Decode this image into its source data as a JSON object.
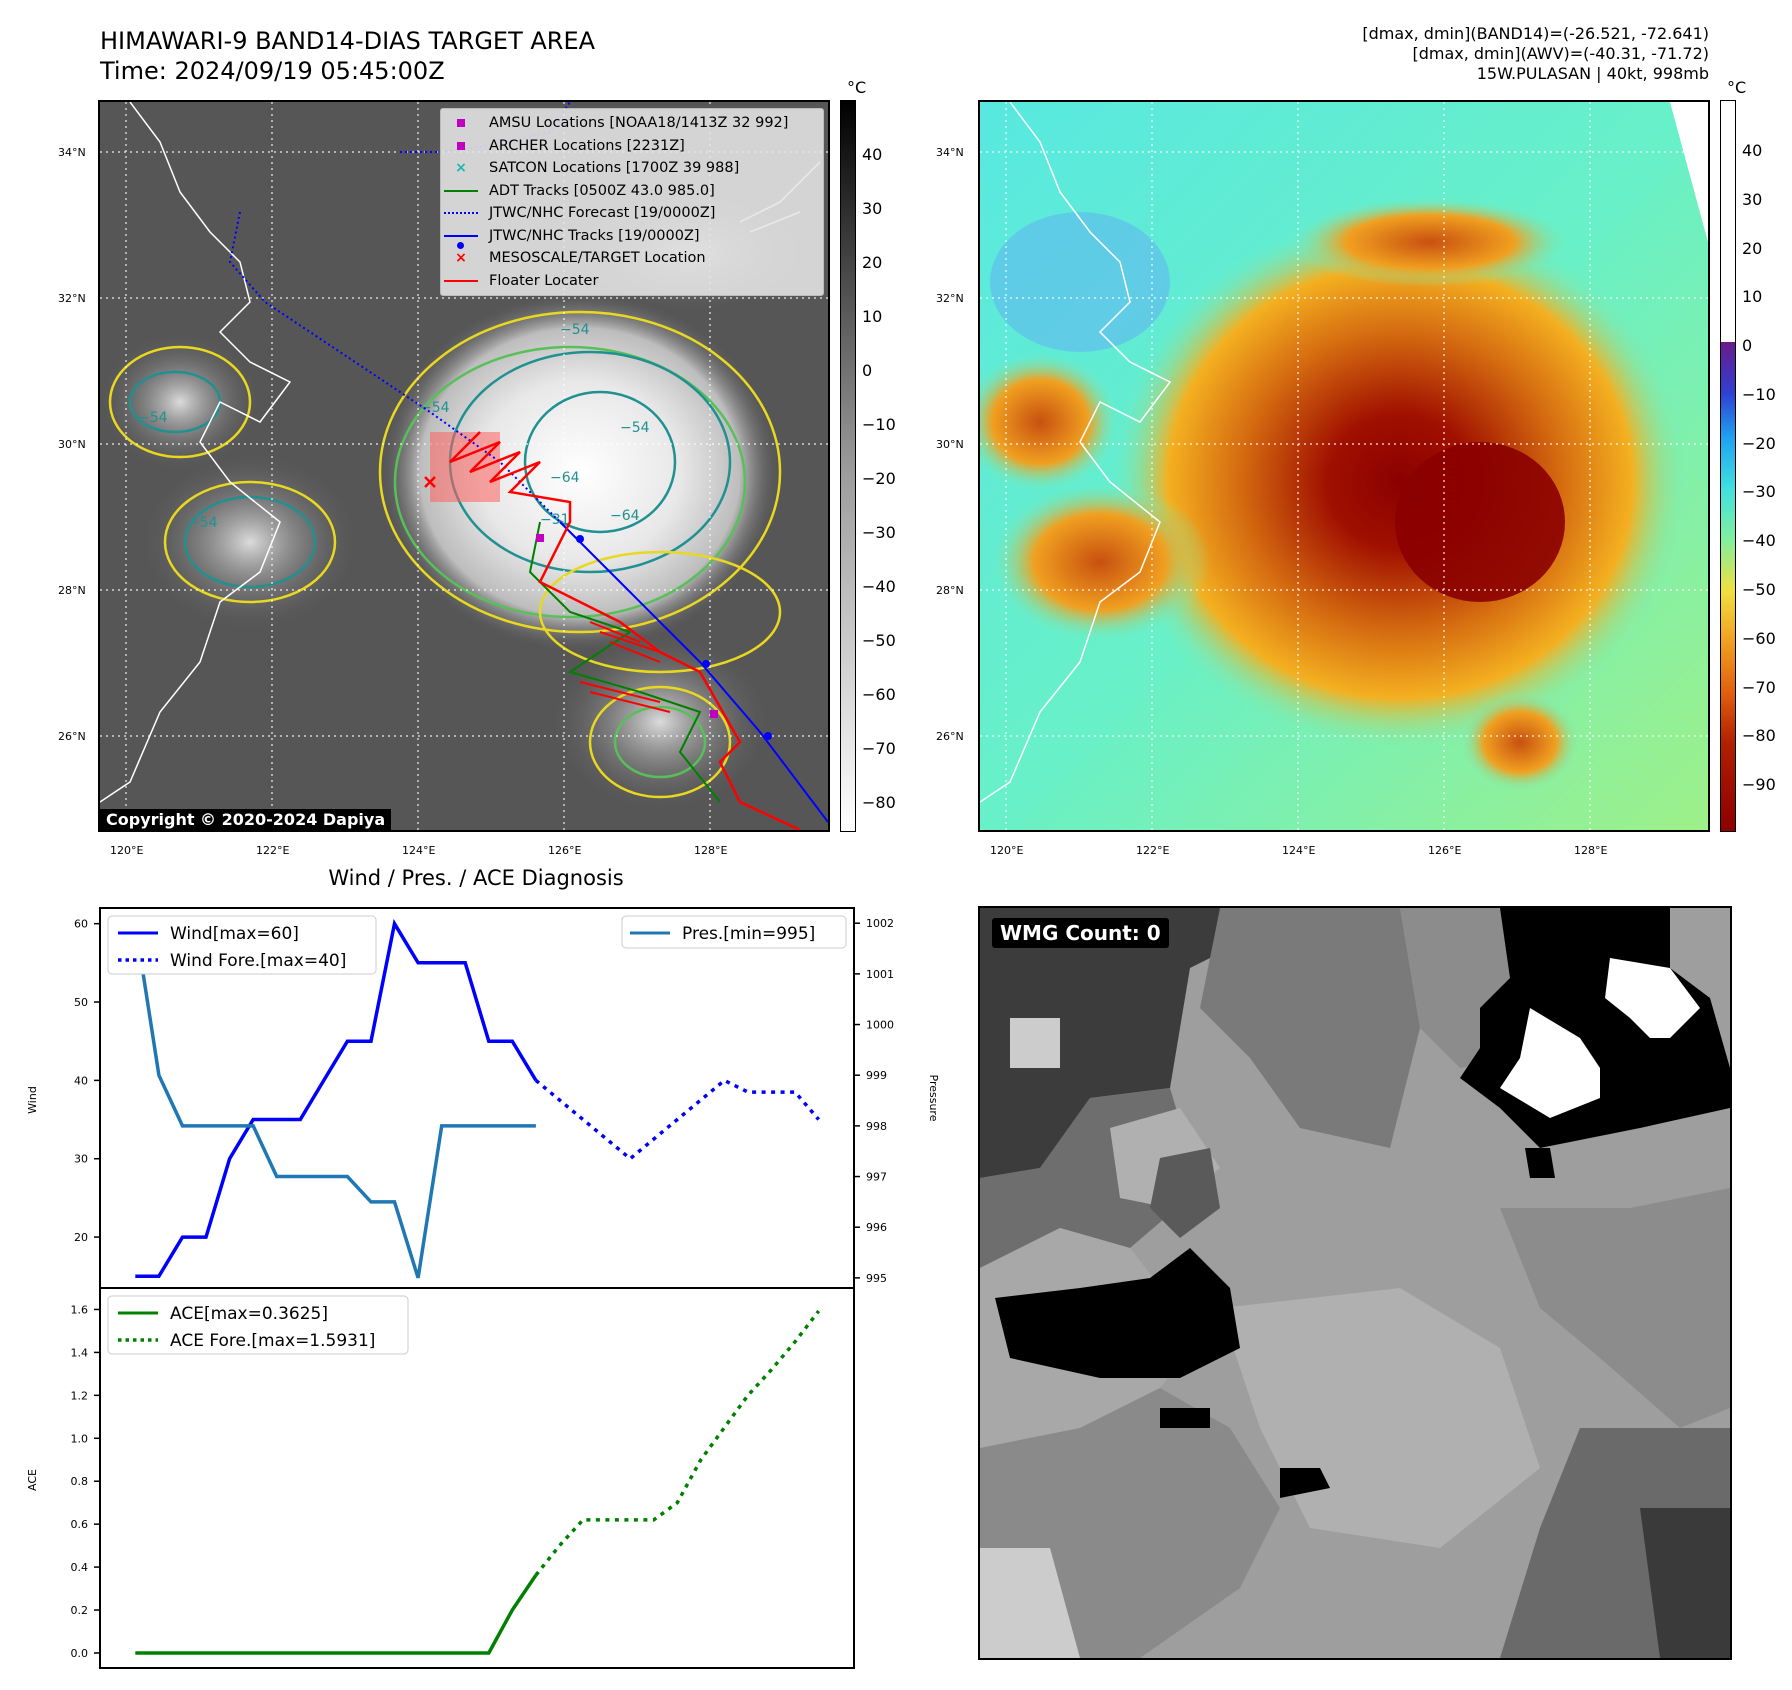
{
  "header": {
    "title_line1": "HIMAWARI-9 BAND14-DIAS TARGET AREA",
    "title_line2": "Time: 2024/09/19 05:45:00Z",
    "info_line1": "[dmax, dmin](BAND14)=(-26.521, -72.641)",
    "info_line2": "[dmax, dmin](AWV)=(-40.31, -71.72)",
    "info_line3": "15W.PULASAN | 40kt, 998mb"
  },
  "maps": {
    "lat_labels": [
      "34°N",
      "32°N",
      "30°N",
      "28°N",
      "26°N"
    ],
    "lon_labels": [
      "120°E",
      "122°E",
      "124°E",
      "126°E",
      "128°E"
    ],
    "colorbar_unit": "°C",
    "ir_colorbar_ticks": [
      "40",
      "30",
      "20",
      "10",
      "0",
      "−10",
      "−20",
      "−30",
      "−40",
      "−50",
      "−60",
      "−70",
      "−80"
    ],
    "awv_colorbar_ticks": [
      "40",
      "30",
      "20",
      "10",
      "0",
      "−10",
      "−20",
      "−30",
      "−40",
      "−50",
      "−60",
      "−70",
      "−80",
      "−90"
    ],
    "copyright": "Copyright © 2020-2024 Dapiya",
    "contour_labels": [
      "−54",
      "−54",
      "−64",
      "−54",
      "−64",
      "−54",
      "−54",
      "−31"
    ],
    "legend": [
      {
        "label": "AMSU Locations [NOAA18/1413Z 32 992]",
        "color": "#bf00bf",
        "marker": "square"
      },
      {
        "label": "ARCHER Locations [2231Z]",
        "color": "#bf00bf",
        "marker": "square"
      },
      {
        "label": "SATCON Locations [1700Z 39 988]",
        "color": "#17b8b0",
        "marker": "x"
      },
      {
        "label": "ADT Tracks [0500Z 43.0 985.0]",
        "color": "#008000",
        "marker": "line"
      },
      {
        "label": "JTWC/NHC Forecast [19/0000Z]",
        "color": "#0000ff",
        "marker": "dotted"
      },
      {
        "label": "JTWC/NHC Tracks [19/0000Z]",
        "color": "#0000ff",
        "marker": "line-dot"
      },
      {
        "label": "MESOSCALE/TARGET Location",
        "color": "#ff0000",
        "marker": "x"
      },
      {
        "label": "Floater Locater",
        "color": "#ff0000",
        "marker": "line"
      }
    ]
  },
  "diagnosis": {
    "title": "Wind / Pres. / ACE Diagnosis",
    "wind_axis_label": "Wind",
    "pressure_axis_label": "Pressure",
    "ace_axis_label": "ACE",
    "legend_wind": "Wind[max=60]",
    "legend_wind_fore": "Wind Fore.[max=40]",
    "legend_pres": "Pres.[min=995]",
    "legend_ace": "ACE[max=0.3625]",
    "legend_ace_fore": "ACE Fore.[max=1.5931]"
  },
  "wmg": {
    "label": "WMG Count: 0"
  },
  "colors": {
    "wind": "#0000ff",
    "pressure": "#1f77b4",
    "ace": "#008000",
    "floater": "#ff0000"
  },
  "chart_data": [
    {
      "type": "line",
      "title": "Wind / Pres. / ACE Diagnosis",
      "ylabel": "Wind",
      "ylim": [
        13.5,
        62
      ],
      "yticks": [
        20,
        30,
        40,
        50,
        60
      ],
      "series": [
        {
          "name": "Wind[max=60]",
          "x": [
            0,
            1,
            2,
            3,
            4,
            5,
            6,
            7,
            8,
            9,
            10,
            11,
            12,
            13,
            14,
            15,
            16,
            17
          ],
          "values": [
            15,
            15,
            20,
            20,
            30,
            35,
            35,
            35,
            40,
            45,
            45,
            60,
            55,
            55,
            55,
            45,
            45,
            40
          ]
        },
        {
          "name": "Wind Fore.[max=40]",
          "x": [
            17,
            18,
            19,
            20,
            21,
            22,
            23,
            24,
            25,
            26,
            27,
            28,
            29
          ],
          "values": [
            40,
            37.5,
            35,
            32.5,
            30,
            32.5,
            35,
            37.5,
            40,
            38.5,
            38.5,
            38.5,
            35
          ]
        }
      ]
    },
    {
      "type": "line",
      "ylabel": "Pressure",
      "ylim": [
        994.8,
        1002.3
      ],
      "yticks": [
        995,
        996,
        997,
        998,
        999,
        1000,
        1001,
        1002
      ],
      "series": [
        {
          "name": "Pres.[min=995]",
          "x": [
            0,
            1,
            2,
            3,
            4,
            5,
            6,
            7,
            8,
            9,
            10,
            11,
            12,
            13,
            14,
            15,
            16,
            17
          ],
          "values": [
            1002,
            999,
            998,
            998,
            998,
            998,
            997,
            997,
            997,
            997,
            996.5,
            996.5,
            995,
            998,
            998,
            998,
            998,
            998
          ]
        }
      ]
    },
    {
      "type": "line",
      "ylabel": "ACE",
      "ylim": [
        -0.07,
        1.7
      ],
      "yticks": [
        0.0,
        0.2,
        0.4,
        0.6,
        0.8,
        1.0,
        1.2,
        1.4,
        1.6
      ],
      "ytick_labels": [
        "0.0",
        "0.2",
        "0.4",
        "0.6",
        "0.8",
        "1.0",
        "1.2",
        "1.4",
        "1.6"
      ],
      "series": [
        {
          "name": "ACE[max=0.3625]",
          "x": [
            0,
            1,
            2,
            3,
            4,
            5,
            6,
            7,
            8,
            9,
            10,
            11,
            12,
            13,
            14,
            15,
            16,
            17
          ],
          "values": [
            0,
            0,
            0,
            0,
            0,
            0,
            0,
            0,
            0,
            0,
            0,
            0,
            0,
            0,
            0,
            0,
            0.2,
            0.3625
          ]
        },
        {
          "name": "ACE Fore.[max=1.5931]",
          "x": [
            17,
            18,
            19,
            20,
            21,
            22,
            23,
            24,
            25,
            26,
            27,
            28,
            29
          ],
          "values": [
            0.3625,
            0.5,
            0.62,
            0.62,
            0.62,
            0.62,
            0.7,
            0.9,
            1.05,
            1.2,
            1.32,
            1.45,
            1.5931
          ]
        }
      ]
    }
  ]
}
